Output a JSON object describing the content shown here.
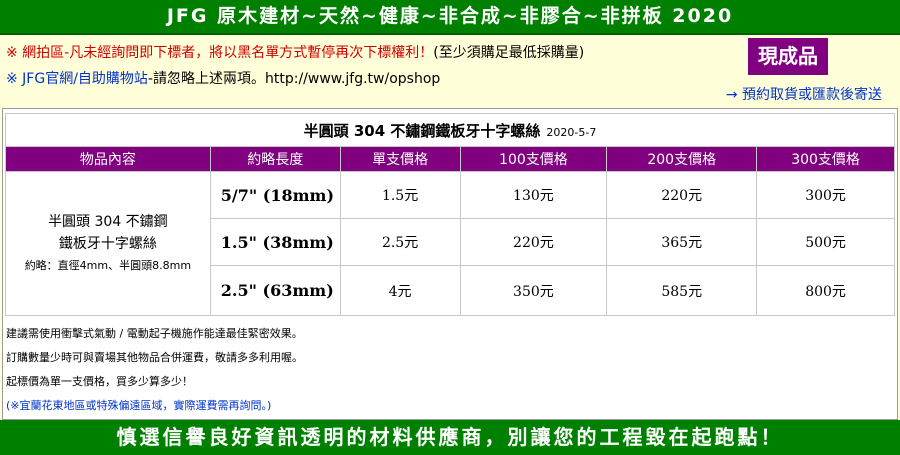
{
  "header": {
    "title": "JFG 原木建材~天然~健康~非合成~非膠合~非拼板 2020"
  },
  "notice": {
    "lines": [
      [
        "※ 網拍區-凡未經詢問即下標者，將以黑名單方式暫停再次下標權利！",
        "(至少須購足最低採購量)"
      ],
      [
        "※ JFG官網/自助購物站",
        "-請忽略上述兩項。http://www.jfg.tw/opshop"
      ]
    ],
    "badge": "現成品",
    "note": "→ 預約取貨或匯款後寄送"
  },
  "table": {
    "title": "半圓頭 304 不鏽鋼鐵板牙十字螺絲",
    "date": "2020-5-7",
    "columns": [
      "物品內容",
      "約略長度",
      "單支價格",
      "100支價格",
      "200支價格",
      "300支價格"
    ],
    "product": {
      "name_lines": [
        "半圓頭 304 不鏽鋼",
        "鐵板牙十字螺絲"
      ],
      "spec": "約略：直徑4mm、半圓頭8.8mm"
    },
    "rows": [
      [
        "5/7\" (18mm)",
        "1.5元",
        "130元",
        "220元",
        "300元"
      ],
      [
        "1.5\" (38mm)",
        "2.5元",
        "220元",
        "365元",
        "500元"
      ],
      [
        "2.5\" (63mm)",
        "4元",
        "350元",
        "585元",
        "800元"
      ]
    ]
  },
  "notes": [
    "建議需使用衝擊式氣動 / 電動起子機施作能達最佳緊密效果。",
    "訂購數量少時可與賣場其他物品合併運費，敬請多多利用喔。",
    "起標價為單一支價格，買多少算多少！",
    "(※宜蘭花東地區或特殊偏遠區域，實際運費需再詢問。)"
  ],
  "footer": {
    "slogan": "慎選信譽良好資訊透明的材料供應商，別讓您的工程毀在起跑點！"
  }
}
